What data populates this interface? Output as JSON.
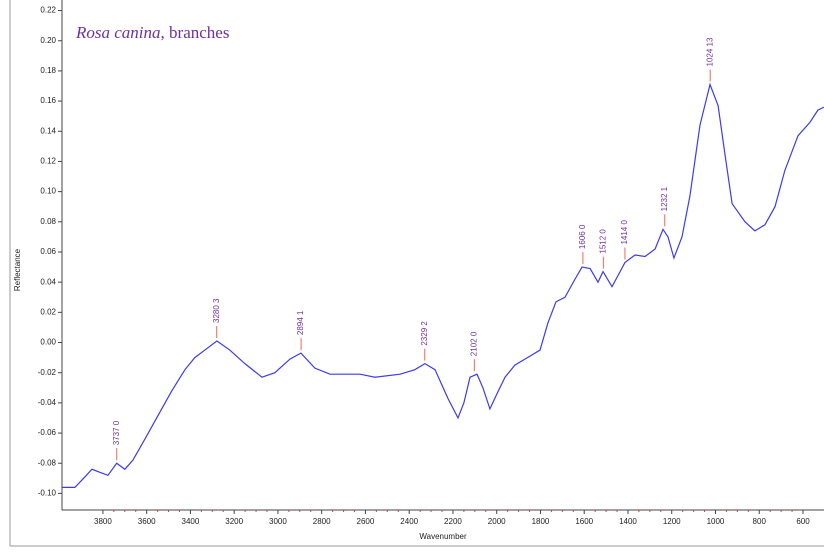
{
  "chart_data": {
    "type": "line",
    "title": [
      "Rosa canina",
      ", branches"
    ],
    "xlabel": "Wavenumber",
    "ylabel": "Reflectance",
    "xlim": [
      3987,
      504
    ],
    "ylim": [
      -0.111,
      0.227
    ],
    "xticks": [
      3800,
      3600,
      3400,
      3200,
      3000,
      2800,
      2600,
      2400,
      2200,
      2000,
      1800,
      1600,
      1400,
      1200,
      1000,
      800,
      600
    ],
    "yticks": [
      {
        "value": -0.1,
        "label": "-0.10"
      },
      {
        "value": -0.08,
        "label": "-0.08"
      },
      {
        "value": -0.06,
        "label": "-0.06"
      },
      {
        "value": -0.04,
        "label": "-0.04"
      },
      {
        "value": -0.02,
        "label": "-0.02"
      },
      {
        "value": 0,
        "label": "0.00"
      },
      {
        "value": 0.02,
        "label": "0.02"
      },
      {
        "value": 0.04,
        "label": "0.04"
      },
      {
        "value": 0.06,
        "label": "0.06"
      },
      {
        "value": 0.08,
        "label": "0.08"
      },
      {
        "value": 0.1,
        "label": "0.10"
      },
      {
        "value": 0.12,
        "label": "0.12"
      },
      {
        "value": 0.14,
        "label": "0.14"
      },
      {
        "value": 0.16,
        "label": "0.16"
      },
      {
        "value": 0.18,
        "label": "0.18"
      },
      {
        "value": 0.2,
        "label": "0.20"
      },
      {
        "value": 0.22,
        "label": "0.22"
      }
    ],
    "series": [
      {
        "color": "#3b3bef",
        "x": [
          3987,
          3928,
          3882,
          3850,
          3814,
          3777,
          3737,
          3700,
          3663,
          3608,
          3539,
          3485,
          3425,
          3380,
          3334,
          3279,
          3220,
          3151,
          3073,
          3014,
          2945,
          2895,
          2831,
          2762,
          2625,
          2556,
          2442,
          2374,
          2328,
          2282,
          2223,
          2177,
          2150,
          2122,
          2090,
          2063,
          2031,
          1999,
          1962,
          1917,
          1848,
          1802,
          1766,
          1729,
          1688,
          1642,
          1610,
          1573,
          1537,
          1514,
          1473,
          1436,
          1414,
          1368,
          1322,
          1276,
          1240,
          1217,
          1190,
          1153,
          1117,
          1071,
          1025,
          988,
          956,
          924,
          865,
          820,
          774,
          728,
          683,
          623,
          568,
          532,
          504
        ],
        "values": [
          -0.096,
          -0.096,
          -0.089,
          -0.084,
          -0.086,
          -0.088,
          -0.08,
          -0.084,
          -0.078,
          -0.064,
          -0.046,
          -0.032,
          -0.018,
          -0.01,
          -0.005,
          0.001,
          -0.005,
          -0.014,
          -0.023,
          -0.02,
          -0.011,
          -0.007,
          -0.017,
          -0.021,
          -0.021,
          -0.023,
          -0.021,
          -0.018,
          -0.014,
          -0.018,
          -0.037,
          -0.05,
          -0.04,
          -0.023,
          -0.021,
          -0.03,
          -0.044,
          -0.034,
          -0.023,
          -0.015,
          -0.009,
          -0.005,
          0.013,
          0.027,
          0.03,
          0.042,
          0.05,
          0.049,
          0.04,
          0.047,
          0.037,
          0.047,
          0.053,
          0.058,
          0.057,
          0.062,
          0.075,
          0.07,
          0.056,
          0.07,
          0.097,
          0.144,
          0.171,
          0.157,
          0.124,
          0.092,
          0.08,
          0.074,
          0.078,
          0.09,
          0.114,
          0.137,
          0.146,
          0.154,
          0.156
        ]
      }
    ],
    "annotations": [
      {
        "x": 3737,
        "y": -0.08,
        "label": "3737 0"
      },
      {
        "x": 3280,
        "y": 0.001,
        "label": "3280 3"
      },
      {
        "x": 2894,
        "y": -0.007,
        "label": "2894 1"
      },
      {
        "x": 2329,
        "y": -0.014,
        "label": "2329 2"
      },
      {
        "x": 2102,
        "y": -0.021,
        "label": "2102 0"
      },
      {
        "x": 1606,
        "y": 0.05,
        "label": "1606 0"
      },
      {
        "x": 1512,
        "y": 0.047,
        "label": "1512 0"
      },
      {
        "x": 1414,
        "y": 0.053,
        "label": "1414 0"
      },
      {
        "x": 1232,
        "y": 0.075,
        "label": "1232 1"
      },
      {
        "x": 1024,
        "y": 0.171,
        "label": "1024 13"
      }
    ],
    "annotation_color": "#7030a0",
    "marker_color": "#f08070"
  }
}
